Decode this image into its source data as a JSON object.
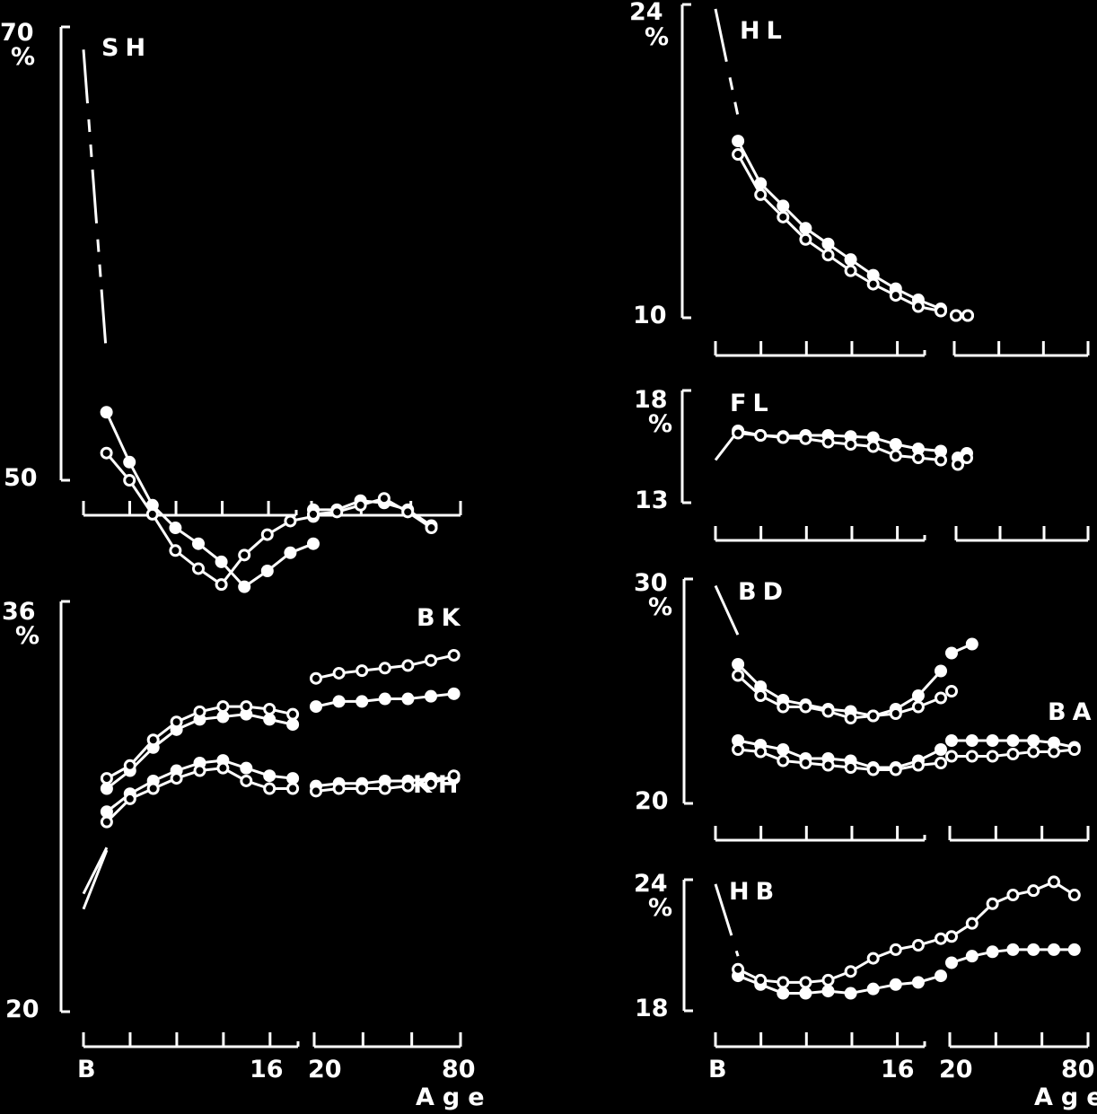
{
  "colors": {
    "background": "#000000",
    "foreground": "#ffffff"
  },
  "markers": {
    "filled": "filled-circle",
    "open": "open-circle"
  },
  "chart_data": [
    {
      "id": "SH",
      "type": "line",
      "label": "SH",
      "ylim": [
        50,
        70
      ],
      "y_ticks": [
        "70",
        "50"
      ],
      "y_unit": "%",
      "age_groups": [
        1,
        2,
        3,
        4,
        5,
        6,
        7,
        8,
        9,
        10
      ],
      "adult_groups": [
        1,
        2,
        3,
        4,
        5,
        6
      ],
      "early_trend": {
        "style": "dashed",
        "points": [
          [
            0,
            69
          ],
          [
            1,
            55.5
          ]
        ]
      },
      "series": [
        {
          "marker": "filled-circle",
          "child": [
            53,
            50.8,
            48.9,
            47.9,
            47.2,
            46.4,
            45.3,
            46.0,
            46.8,
            47.2
          ],
          "adult": [
            48.7,
            48.7,
            49.1,
            49.0,
            48.7,
            48.0
          ]
        },
        {
          "marker": "open-circle",
          "child": [
            51.2,
            50.0,
            48.5,
            46.9,
            46.1,
            45.4,
            46.7,
            47.6,
            48.2,
            48.4
          ],
          "adult": [
            48.5,
            48.6,
            48.9,
            49.2,
            48.6,
            47.9
          ]
        }
      ]
    },
    {
      "id": "HL",
      "type": "line",
      "label": "HL",
      "ylim": [
        10,
        24
      ],
      "y_ticks": [
        "24",
        "10"
      ],
      "y_unit": "%",
      "age_groups": [
        1,
        2,
        3,
        4,
        5,
        6,
        7,
        8,
        9,
        10
      ],
      "adult_groups": [
        1,
        2
      ],
      "early_trend": {
        "style": "dashed",
        "points": [
          [
            0,
            23.8
          ],
          [
            1,
            19
          ]
        ]
      },
      "series": [
        {
          "marker": "filled-circle",
          "child": [
            17.9,
            16.0,
            15.0,
            14.0,
            13.3,
            12.6,
            11.9,
            11.3,
            10.8,
            10.4
          ],
          "adult": [
            10.1,
            10.1
          ]
        },
        {
          "marker": "open-circle",
          "child": [
            17.3,
            15.5,
            14.5,
            13.5,
            12.8,
            12.1,
            11.5,
            11.0,
            10.5,
            10.3
          ],
          "adult": [
            10.1,
            10.1
          ]
        }
      ]
    },
    {
      "id": "FL",
      "type": "line",
      "label": "FL",
      "ylim": [
        13,
        18
      ],
      "y_ticks": [
        "18",
        "13"
      ],
      "y_unit": "%",
      "age_groups": [
        1,
        2,
        3,
        4,
        5,
        6,
        7,
        8,
        9,
        10
      ],
      "adult_groups": [
        1,
        2
      ],
      "early_trend": {
        "style": "dashed",
        "points": [
          [
            0,
            14.9
          ],
          [
            1,
            16.2
          ]
        ]
      },
      "series": [
        {
          "marker": "filled-circle",
          "child": [
            16.2,
            16.0,
            15.95,
            16.0,
            16.0,
            15.95,
            15.9,
            15.6,
            15.4,
            15.3
          ],
          "adult": [
            15.0,
            15.2
          ]
        },
        {
          "marker": "open-circle",
          "child": [
            16.1,
            16.0,
            15.9,
            15.85,
            15.7,
            15.6,
            15.5,
            15.1,
            15.0,
            14.9
          ],
          "adult": [
            14.7,
            15.0
          ]
        }
      ]
    },
    {
      "id": "BD-BA",
      "type": "line",
      "labels": [
        "BD",
        "BA"
      ],
      "ylim": [
        20,
        30
      ],
      "y_ticks": [
        "30",
        "20"
      ],
      "y_unit": "%",
      "age_groups": [
        1,
        2,
        3,
        4,
        5,
        6,
        7,
        8,
        9,
        10
      ],
      "adult_groups": [
        1,
        2,
        3,
        4,
        5,
        6,
        7
      ],
      "early_trend": {
        "style": "dashed",
        "points": [
          [
            0,
            29.7
          ],
          [
            1,
            27.5
          ]
        ]
      },
      "series": [
        {
          "group": "BD",
          "marker": "filled-circle",
          "child": [
            26.2,
            25.2,
            24.6,
            24.4,
            24.2,
            24.1,
            23.9,
            24.2,
            24.8,
            25.9
          ],
          "adult": [
            26.7,
            27.1
          ]
        },
        {
          "group": "BD",
          "marker": "open-circle",
          "child": [
            25.7,
            24.8,
            24.3,
            24.3,
            24.1,
            23.8,
            23.9,
            24.0,
            24.3,
            24.7
          ],
          "adult": [
            25.0
          ]
        },
        {
          "group": "BA",
          "marker": "filled-circle",
          "child": [
            22.8,
            22.6,
            22.4,
            22.0,
            22.0,
            21.9,
            21.6,
            21.6,
            21.9,
            22.4
          ],
          "adult": [
            22.8,
            22.8,
            22.8,
            22.8,
            22.8,
            22.7,
            22.5
          ]
        },
        {
          "group": "BA",
          "marker": "open-circle",
          "child": [
            22.4,
            22.3,
            21.9,
            21.8,
            21.7,
            21.6,
            21.5,
            21.5,
            21.7,
            21.8
          ],
          "adult": [
            22.1,
            22.1,
            22.1,
            22.2,
            22.3,
            22.3,
            22.4
          ]
        }
      ]
    },
    {
      "id": "BK-KH",
      "type": "line",
      "labels": [
        "BK",
        "KH"
      ],
      "ylim": [
        20,
        36
      ],
      "y_ticks": [
        "36",
        "20"
      ],
      "y_unit": "%",
      "age_groups": [
        1,
        2,
        3,
        4,
        5,
        6,
        7,
        8,
        9,
        10
      ],
      "adult_groups": [
        1,
        2,
        3,
        4,
        5,
        6,
        7
      ],
      "x_ticks": {
        "child_first": "B",
        "child_last": "16",
        "adult_first": "20",
        "adult_last": "80"
      },
      "x_title": "Age",
      "early_trend": {
        "style": "solid",
        "lines": [
          [
            [
              0,
              24.6
            ],
            [
              1,
              26.4
            ]
          ],
          [
            [
              0,
              24.0
            ],
            [
              1,
              26.3
            ]
          ]
        ]
      },
      "series": [
        {
          "group": "BK",
          "marker": "filled-circle",
          "child": [
            28.7,
            29.4,
            30.3,
            31.0,
            31.4,
            31.5,
            31.6,
            31.4,
            31.2,
            null
          ],
          "adult": [
            31.9,
            32.1,
            32.1,
            32.2,
            32.2,
            32.3,
            32.4
          ]
        },
        {
          "group": "BK",
          "marker": "open-circle",
          "child": [
            29.1,
            29.6,
            30.6,
            31.3,
            31.7,
            31.9,
            31.9,
            31.8,
            31.6,
            null
          ],
          "adult": [
            33.0,
            33.2,
            33.3,
            33.4,
            33.5,
            33.7,
            33.9
          ]
        },
        {
          "group": "KH",
          "marker": "filled-circle",
          "child": [
            27.8,
            28.5,
            29.0,
            29.4,
            29.7,
            29.8,
            29.5,
            29.2,
            29.1,
            null
          ],
          "adult": [
            28.8,
            28.9,
            28.9,
            29.0,
            29.0,
            29.1,
            29.1
          ]
        },
        {
          "group": "KH",
          "marker": "open-circle",
          "child": [
            27.4,
            28.3,
            28.7,
            29.1,
            29.4,
            29.5,
            29.0,
            28.7,
            28.7,
            null
          ],
          "adult": [
            28.6,
            28.7,
            28.7,
            28.7,
            28.8,
            28.9,
            29.2
          ]
        }
      ]
    },
    {
      "id": "HB",
      "type": "line",
      "label": "HB",
      "ylim": [
        18,
        24
      ],
      "y_ticks": [
        "24",
        "18"
      ],
      "y_unit": "%",
      "age_groups": [
        1,
        2,
        3,
        4,
        5,
        6,
        7,
        8,
        9,
        10
      ],
      "adult_groups": [
        1,
        2,
        3,
        4,
        5,
        6,
        7
      ],
      "x_ticks": {
        "child_first": "B",
        "child_last": "16",
        "adult_first": "20",
        "adult_last": "80"
      },
      "x_title": "Age",
      "early_trend": {
        "style": "dashed",
        "points": [
          [
            0,
            23.8
          ],
          [
            1,
            20.5
          ]
        ]
      },
      "series": [
        {
          "marker": "filled-circle",
          "child": [
            19.6,
            19.2,
            18.8,
            18.8,
            18.9,
            18.8,
            19.0,
            19.2,
            19.3,
            19.6
          ],
          "adult": [
            20.2,
            20.5,
            20.7,
            20.8,
            20.8,
            20.8,
            20.8
          ]
        },
        {
          "marker": "open-circle",
          "child": [
            19.9,
            19.4,
            19.3,
            19.3,
            19.4,
            19.8,
            20.4,
            20.8,
            21.0,
            21.3
          ],
          "adult": [
            21.4,
            22.0,
            22.9,
            23.3,
            23.5,
            23.9,
            23.3
          ]
        }
      ]
    }
  ]
}
